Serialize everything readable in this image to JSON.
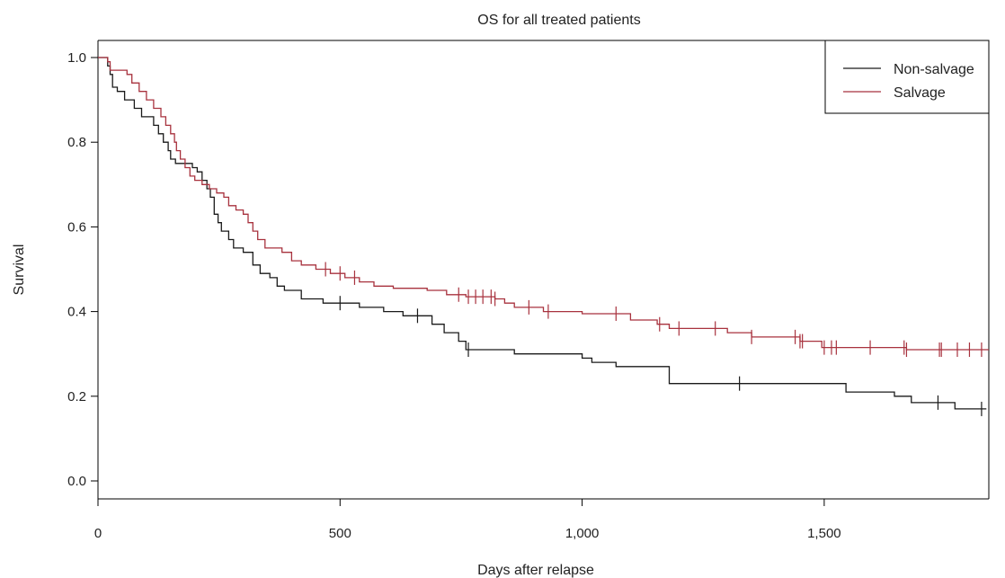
{
  "chart_data": {
    "type": "line",
    "title": "OS for all treated patients",
    "xlabel": "Days after relapse",
    "ylabel": "Survival",
    "xlim": [
      0,
      1840
    ],
    "ylim": [
      0,
      1.0
    ],
    "x_ticks": [
      0,
      500,
      1000,
      1500
    ],
    "x_tick_labels": [
      "0",
      "500",
      "1,000",
      "1,500"
    ],
    "y_ticks": [
      0.0,
      0.2,
      0.4,
      0.6,
      0.8,
      1.0
    ],
    "y_tick_labels": [
      "0.0",
      "0.2",
      "0.4",
      "0.6",
      "0.8",
      "1.0"
    ],
    "grid": false,
    "legend_position": "top-right",
    "series": [
      {
        "name": "Non-salvage",
        "color": "#1a1a1a",
        "steps": [
          [
            0,
            1.0
          ],
          [
            20,
            0.98
          ],
          [
            25,
            0.96
          ],
          [
            30,
            0.93
          ],
          [
            40,
            0.92
          ],
          [
            55,
            0.9
          ],
          [
            75,
            0.88
          ],
          [
            90,
            0.86
          ],
          [
            115,
            0.84
          ],
          [
            125,
            0.82
          ],
          [
            135,
            0.8
          ],
          [
            145,
            0.78
          ],
          [
            150,
            0.76
          ],
          [
            160,
            0.75
          ],
          [
            195,
            0.74
          ],
          [
            205,
            0.73
          ],
          [
            215,
            0.71
          ],
          [
            225,
            0.69
          ],
          [
            232,
            0.67
          ],
          [
            240,
            0.63
          ],
          [
            248,
            0.61
          ],
          [
            255,
            0.59
          ],
          [
            270,
            0.57
          ],
          [
            280,
            0.55
          ],
          [
            300,
            0.54
          ],
          [
            320,
            0.51
          ],
          [
            335,
            0.49
          ],
          [
            355,
            0.48
          ],
          [
            370,
            0.46
          ],
          [
            385,
            0.45
          ],
          [
            420,
            0.43
          ],
          [
            465,
            0.42
          ],
          [
            540,
            0.41
          ],
          [
            590,
            0.4
          ],
          [
            630,
            0.39
          ],
          [
            690,
            0.37
          ],
          [
            715,
            0.35
          ],
          [
            745,
            0.33
          ],
          [
            760,
            0.31
          ],
          [
            860,
            0.3
          ],
          [
            1000,
            0.29
          ],
          [
            1020,
            0.28
          ],
          [
            1070,
            0.27
          ],
          [
            1180,
            0.23
          ],
          [
            1545,
            0.21
          ],
          [
            1645,
            0.2
          ],
          [
            1680,
            0.185
          ],
          [
            1770,
            0.17
          ],
          [
            1835,
            0.17
          ]
        ],
        "censor_x": [
          500,
          660,
          765,
          1325,
          1735,
          1825
        ]
      },
      {
        "name": "Salvage",
        "color": "#a8323e",
        "steps": [
          [
            0,
            1.0
          ],
          [
            20,
            0.99
          ],
          [
            25,
            0.97
          ],
          [
            60,
            0.96
          ],
          [
            70,
            0.94
          ],
          [
            85,
            0.92
          ],
          [
            100,
            0.9
          ],
          [
            115,
            0.88
          ],
          [
            130,
            0.86
          ],
          [
            140,
            0.84
          ],
          [
            150,
            0.82
          ],
          [
            158,
            0.8
          ],
          [
            162,
            0.78
          ],
          [
            170,
            0.76
          ],
          [
            180,
            0.74
          ],
          [
            190,
            0.72
          ],
          [
            200,
            0.71
          ],
          [
            215,
            0.7
          ],
          [
            230,
            0.69
          ],
          [
            245,
            0.68
          ],
          [
            260,
            0.67
          ],
          [
            270,
            0.65
          ],
          [
            285,
            0.64
          ],
          [
            300,
            0.63
          ],
          [
            310,
            0.61
          ],
          [
            320,
            0.59
          ],
          [
            330,
            0.57
          ],
          [
            345,
            0.55
          ],
          [
            380,
            0.54
          ],
          [
            400,
            0.52
          ],
          [
            420,
            0.51
          ],
          [
            450,
            0.5
          ],
          [
            480,
            0.49
          ],
          [
            510,
            0.48
          ],
          [
            540,
            0.47
          ],
          [
            570,
            0.46
          ],
          [
            610,
            0.455
          ],
          [
            680,
            0.45
          ],
          [
            720,
            0.44
          ],
          [
            760,
            0.435
          ],
          [
            820,
            0.43
          ],
          [
            840,
            0.42
          ],
          [
            860,
            0.41
          ],
          [
            920,
            0.4
          ],
          [
            1000,
            0.395
          ],
          [
            1100,
            0.38
          ],
          [
            1155,
            0.37
          ],
          [
            1180,
            0.36
          ],
          [
            1300,
            0.35
          ],
          [
            1350,
            0.34
          ],
          [
            1450,
            0.33
          ],
          [
            1495,
            0.315
          ],
          [
            1670,
            0.31
          ],
          [
            1840,
            0.31
          ]
        ],
        "censor_x": [
          470,
          500,
          530,
          745,
          765,
          780,
          795,
          812,
          820,
          890,
          930,
          1070,
          1160,
          1200,
          1275,
          1350,
          1440,
          1450,
          1455,
          1500,
          1515,
          1525,
          1595,
          1665,
          1670,
          1738,
          1742,
          1775,
          1800,
          1825
        ]
      }
    ]
  }
}
